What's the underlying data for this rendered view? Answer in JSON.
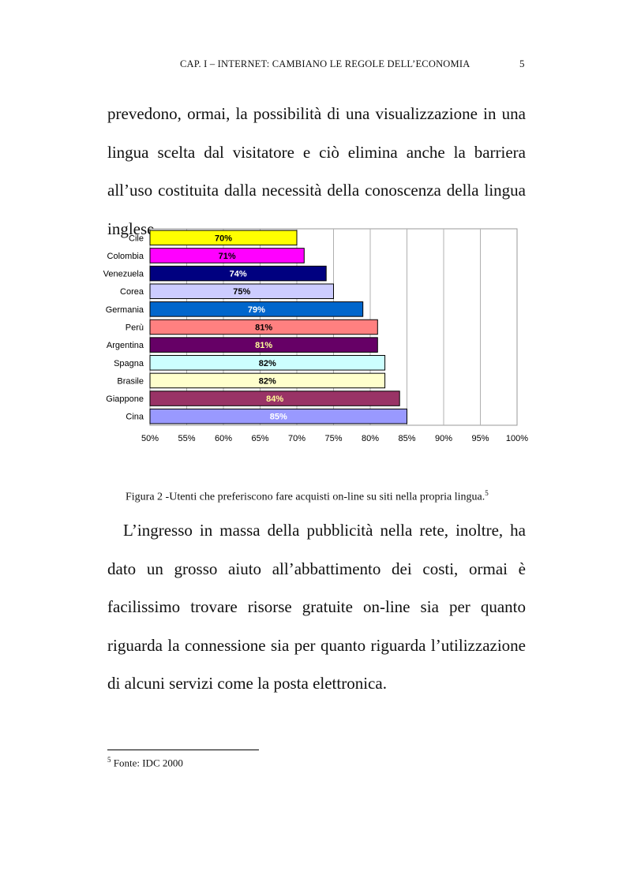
{
  "header": {
    "running_head": "CAP. I – INTERNET: CAMBIANO LE REGOLE DELL’ECONOMIA",
    "page_number": "5"
  },
  "paragraphs": {
    "p1": "prevedono, ormai, la possibilità di una visualizzazione in una lingua scelta dal visitatore e ciò elimina anche la barriera all’uso costituita dalla necessità della conoscenza della lingua inglese.",
    "p2": "L’ingresso in massa della pubblicità nella rete, inoltre, ha dato un grosso aiuto all’abbattimento dei costi, ormai è facilissimo trovare risorse gratuite on-line sia per quanto riguarda la connessione sia per quanto riguarda l’utilizzazione di alcuni servizi come la posta elettronica."
  },
  "caption": {
    "text": "Figura 2 -Utenti che preferiscono fare acquisti on-line su siti nella propria lingua.",
    "footnote_ref": "5"
  },
  "footnote": {
    "marker": "5",
    "text": " Fonte: IDC 2000"
  },
  "chart_data": {
    "type": "bar",
    "orientation": "horizontal",
    "categories": [
      "Cile",
      "Colombia",
      "Venezuela",
      "Corea",
      "Germania",
      "Perù",
      "Argentina",
      "Spagna",
      "Brasile",
      "Giappone",
      "Cina"
    ],
    "values": [
      70,
      71,
      74,
      75,
      79,
      81,
      81,
      82,
      82,
      84,
      85
    ],
    "data_labels": [
      "70%",
      "71%",
      "74%",
      "75%",
      "79%",
      "81%",
      "81%",
      "82%",
      "82%",
      "84%",
      "85%"
    ],
    "bar_colors": [
      "#ffff00",
      "#ff00ff",
      "#000080",
      "#ccccff",
      "#0066cc",
      "#ff8080",
      "#660066",
      "#ccffff",
      "#ffffcc",
      "#993366",
      "#9999ff"
    ],
    "label_colors": [
      "#000000",
      "#000000",
      "#ffffff",
      "#000000",
      "#ffffff",
      "#000000",
      "#ffff99",
      "#000000",
      "#000000",
      "#ffff99",
      "#ffffff"
    ],
    "x_ticks": [
      "50%",
      "55%",
      "60%",
      "65%",
      "70%",
      "75%",
      "80%",
      "85%",
      "90%",
      "95%",
      "100%"
    ],
    "xlim": [
      50,
      100
    ],
    "grid": true,
    "legend": false,
    "title": "",
    "xlabel": "",
    "ylabel": ""
  }
}
